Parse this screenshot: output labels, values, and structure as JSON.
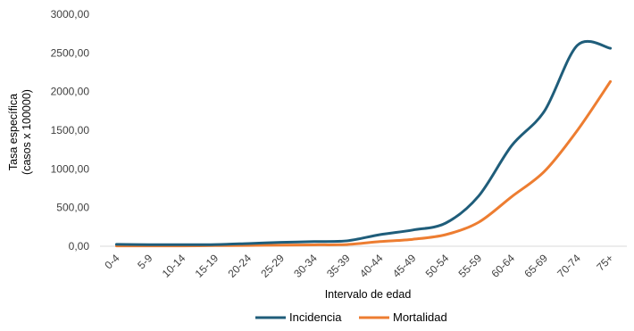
{
  "chart_data": {
    "type": "line",
    "categories": [
      "0-4",
      "5-9",
      "10-14",
      "15-19",
      "20-24",
      "25-29",
      "30-34",
      "35-39",
      "40-44",
      "45-49",
      "50-54",
      "55-59",
      "60-64",
      "65-69",
      "70-74",
      "75+"
    ],
    "series": [
      {
        "name": "Incidencia",
        "color": "#1f5d7a",
        "values": [
          25,
          20,
          20,
          22,
          35,
          50,
          60,
          70,
          150,
          210,
          300,
          650,
          1300,
          1750,
          2600,
          2560
        ]
      },
      {
        "name": "Mortalidad",
        "color": "#ed7d31",
        "values": [
          5,
          5,
          5,
          8,
          10,
          15,
          18,
          22,
          60,
          90,
          150,
          310,
          640,
          970,
          1500,
          2130
        ]
      }
    ],
    "title": "",
    "xlabel": "Intervalo de edad",
    "ylabel_line1": "Tasa específica",
    "ylabel_line2": "(casos x 100000)",
    "ylim": [
      0,
      3000
    ],
    "yticks": [
      "0,00",
      "500,00",
      "1000,00",
      "1500,00",
      "2000,00",
      "2500,00",
      "3000,00"
    ],
    "grid": false,
    "legend": "bottom"
  }
}
